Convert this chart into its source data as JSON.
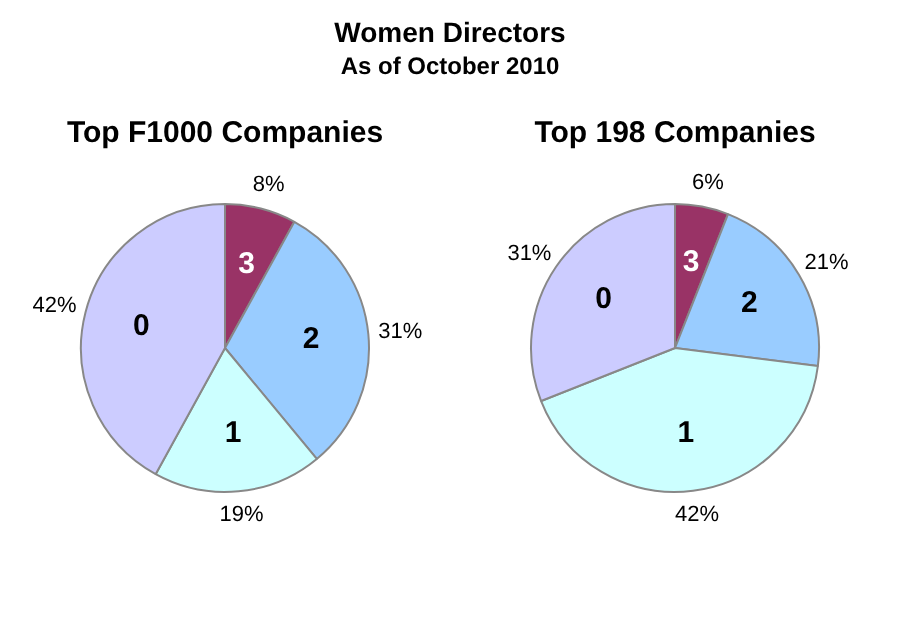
{
  "chart_data": [
    {
      "type": "pie",
      "title": "Top F1000 Companies",
      "annotations": [
        "Women Directors",
        "As of October 2010"
      ],
      "categories": [
        "3",
        "2",
        "1",
        "0"
      ],
      "values": [
        8,
        31,
        19,
        42
      ],
      "colors": [
        "#993366",
        "#99ccff",
        "#ccffff",
        "#ccccff"
      ],
      "value_labels": [
        "8%",
        "31%",
        "19%",
        "42%"
      ],
      "legend": false
    },
    {
      "type": "pie",
      "title": "Top 198 Companies",
      "categories": [
        "3",
        "2",
        "1",
        "0"
      ],
      "values": [
        6,
        21,
        42,
        31
      ],
      "colors": [
        "#993366",
        "#99ccff",
        "#ccffff",
        "#ccccff"
      ],
      "value_labels": [
        "6%",
        "21%",
        "42%",
        "31%"
      ],
      "legend": false
    }
  ]
}
